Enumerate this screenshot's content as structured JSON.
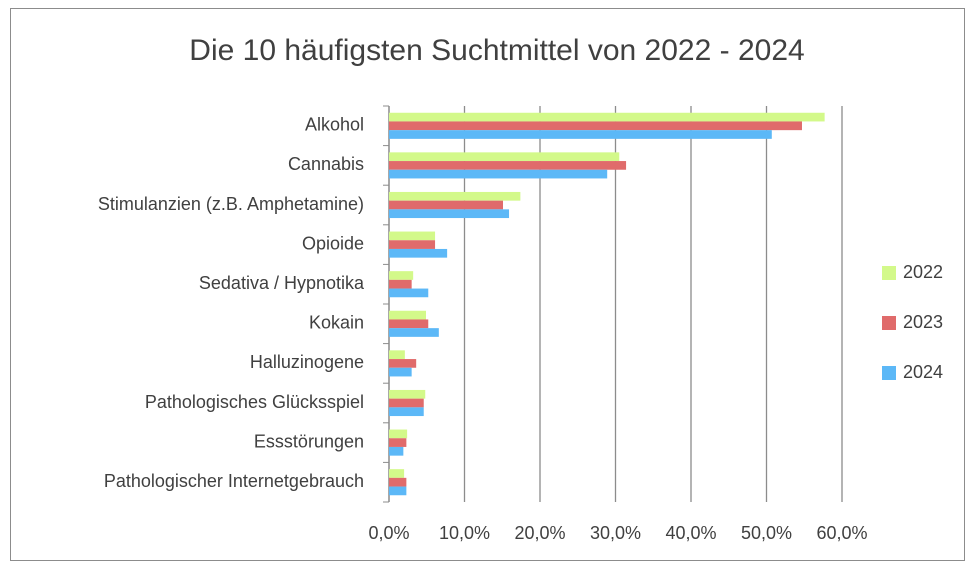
{
  "chart_data": {
    "type": "hbar",
    "title": "Die 10 häufigsten Suchtmittel von 2022 - 2024",
    "categories": [
      "Alkohol",
      "Cannabis",
      "Stimulanzien (z.B. Amphetamine)",
      "Opioide",
      "Sedativa / Hypnotika",
      "Kokain",
      "Halluzinogene",
      "Pathologisches Glücksspiel",
      "Essstörungen",
      "Pathologischer Internetgebrauch"
    ],
    "series": [
      {
        "name": "2022",
        "color": "#d3f98a",
        "values": [
          57.7,
          30.5,
          17.4,
          6.1,
          3.2,
          4.9,
          2.1,
          4.8,
          2.4,
          2.0
        ]
      },
      {
        "name": "2023",
        "color": "#e06b6b",
        "values": [
          54.7,
          31.4,
          15.1,
          6.1,
          3.0,
          5.2,
          3.6,
          4.6,
          2.3,
          2.3
        ]
      },
      {
        "name": "2024",
        "color": "#5cb8f7",
        "values": [
          50.7,
          28.9,
          15.9,
          7.7,
          5.2,
          6.6,
          3.0,
          4.6,
          1.9,
          2.3
        ]
      }
    ],
    "xlim": [
      0,
      60
    ],
    "xticks": [
      {
        "value": 0,
        "label": "0,0%"
      },
      {
        "value": 10,
        "label": "10,0%"
      },
      {
        "value": 20,
        "label": "20,0%"
      },
      {
        "value": 30,
        "label": "30,0%"
      },
      {
        "value": 40,
        "label": "40,0%"
      },
      {
        "value": 50,
        "label": "50,0%"
      },
      {
        "value": 60,
        "label": "60,0%"
      }
    ],
    "grid": true,
    "legend": "right"
  }
}
